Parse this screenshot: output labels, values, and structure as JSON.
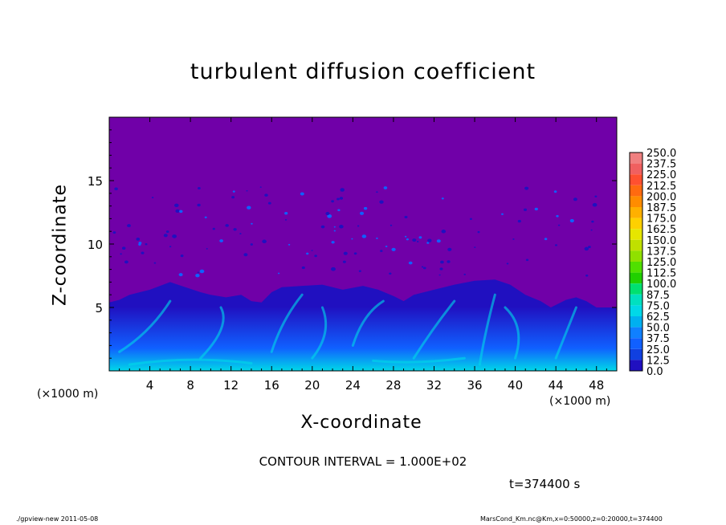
{
  "chart_data": {
    "type": "heatmap",
    "title": "turbulent diffusion coefficient",
    "xlabel": "X-coordinate",
    "ylabel": "Z-coordinate",
    "x_unit_label": "(×1000 m)",
    "xlim": [
      0,
      50
    ],
    "ylim": [
      0,
      20
    ],
    "x_ticks": [
      4,
      8,
      12,
      16,
      20,
      24,
      28,
      32,
      36,
      40,
      44,
      48
    ],
    "y_ticks": [
      5,
      10,
      15
    ],
    "background_value": 0.0,
    "colorbar": {
      "levels": [
        "250.0",
        "237.5",
        "225.0",
        "212.5",
        "200.0",
        "187.5",
        "175.0",
        "162.5",
        "150.0",
        "137.5",
        "125.0",
        "112.5",
        "100.0",
        "87.5",
        "75.0",
        "62.5",
        "50.0",
        "37.5",
        "25.0",
        "12.5",
        "0.0"
      ],
      "colors": [
        "#f08080",
        "#f06060",
        "#ff5030",
        "#ff6a10",
        "#ff8c00",
        "#ffb000",
        "#ffd000",
        "#e6e600",
        "#c0e000",
        "#90e000",
        "#50e000",
        "#20d000",
        "#00e070",
        "#00e0c0",
        "#00d8e8",
        "#00b0f0",
        "#1080ff",
        "#1060ff",
        "#1040e0",
        "#2010c0",
        "#7000a8"
      ]
    },
    "contour_interval": "CONTOUR INTERVAL = 1.000E+02",
    "time_label": "t=374400 s"
  },
  "footer": {
    "left": "./gpview-new   2011-05-08",
    "right": "MarsCond_Km.nc@Km,x=0:50000,z=0:20000,t=374400"
  },
  "colors": {
    "background": "#7000a8",
    "low": "#2010c0",
    "mid": "#1060ff",
    "high": "#00d8e8"
  }
}
